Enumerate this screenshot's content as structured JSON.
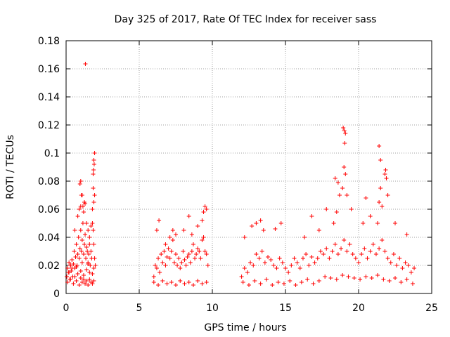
{
  "chart_data": {
    "type": "scatter",
    "title": "Day 325 of 2017, Rate Of TEC Index for receiver sass",
    "xlabel": "GPS time / hours",
    "ylabel": "ROTI / TECUs",
    "xlim": [
      0,
      25
    ],
    "ylim": [
      0,
      0.18
    ],
    "xticks": [
      "0",
      "5",
      "10",
      "15",
      "20",
      "25"
    ],
    "yticks": [
      "0",
      "0.02",
      "0.04",
      "0.06",
      "0.08",
      "0.1",
      "0.12",
      "0.14",
      "0.16",
      "0.18"
    ],
    "grid": true,
    "marker": "+",
    "color": "#ff0000",
    "series": [
      {
        "x": [
          0.05,
          0.1,
          0.15,
          0.2,
          0.25,
          0.3,
          0.35,
          0.4,
          0.45,
          0.5,
          0.55,
          0.6,
          0.65,
          0.7,
          0.75,
          0.8,
          0.85,
          0.9,
          0.95,
          1.0,
          1.05,
          1.1,
          1.15,
          1.2,
          1.25,
          1.3,
          1.35,
          1.4,
          1.45,
          1.5,
          1.55,
          1.6,
          1.65,
          1.7,
          1.75,
          1.8,
          1.85,
          1.9,
          1.95,
          2.0,
          0.1,
          0.3,
          0.5,
          0.7,
          0.9,
          1.0,
          1.1,
          1.2,
          1.3,
          1.4,
          1.5,
          1.6,
          1.7,
          1.8,
          1.9,
          0.6,
          0.8,
          0.9,
          1.0,
          1.1,
          1.2,
          1.25,
          1.4,
          1.5,
          1.6,
          1.7,
          1.8,
          1.85,
          1.9,
          1.95,
          0.95,
          1.0,
          1.05,
          1.15,
          1.3,
          1.85,
          1.9,
          1.95,
          1.88,
          1.92,
          1.32,
          0.2,
          0.4,
          0.6,
          0.8,
          1.0,
          1.2,
          1.4,
          1.6,
          1.8,
          0.3,
          0.7,
          1.1,
          1.5,
          1.9
        ],
        "y": [
          0.012,
          0.018,
          0.015,
          0.022,
          0.01,
          0.02,
          0.016,
          0.024,
          0.012,
          0.021,
          0.03,
          0.018,
          0.026,
          0.035,
          0.02,
          0.028,
          0.04,
          0.025,
          0.032,
          0.045,
          0.03,
          0.038,
          0.05,
          0.028,
          0.035,
          0.042,
          0.025,
          0.033,
          0.03,
          0.022,
          0.028,
          0.035,
          0.02,
          0.03,
          0.025,
          0.05,
          0.045,
          0.035,
          0.025,
          0.02,
          0.008,
          0.01,
          0.007,
          0.009,
          0.006,
          0.011,
          0.008,
          0.01,
          0.007,
          0.009,
          0.006,
          0.01,
          0.008,
          0.007,
          0.009,
          0.045,
          0.055,
          0.06,
          0.062,
          0.07,
          0.058,
          0.065,
          0.05,
          0.045,
          0.04,
          0.048,
          0.06,
          0.075,
          0.065,
          0.07,
          0.078,
          0.08,
          0.07,
          0.062,
          0.064,
          0.085,
          0.095,
          0.1,
          0.088,
          0.092,
          0.1635,
          0.015,
          0.018,
          0.012,
          0.014,
          0.016,
          0.013,
          0.017,
          0.015,
          0.014,
          0.02,
          0.019,
          0.022,
          0.021,
          0.018
        ]
      },
      {
        "x": [
          6.0,
          6.1,
          6.2,
          6.3,
          6.4,
          6.5,
          6.6,
          6.7,
          6.8,
          6.9,
          7.0,
          7.1,
          7.2,
          7.3,
          7.4,
          7.5,
          7.6,
          7.7,
          7.8,
          7.9,
          8.0,
          8.1,
          8.2,
          8.3,
          8.4,
          8.5,
          8.6,
          8.7,
          8.8,
          8.9,
          9.0,
          9.1,
          9.2,
          9.3,
          9.4,
          9.5,
          9.6,
          9.7,
          6.0,
          6.3,
          6.6,
          6.9,
          7.2,
          7.5,
          7.8,
          8.1,
          8.4,
          8.7,
          9.0,
          9.3,
          9.6,
          6.2,
          6.35,
          6.8,
          7.1,
          7.3,
          7.5,
          8.05,
          8.4,
          8.6,
          9.0,
          9.3,
          9.4,
          9.5,
          9.6
        ],
        "y": [
          0.012,
          0.02,
          0.018,
          0.025,
          0.015,
          0.028,
          0.022,
          0.03,
          0.02,
          0.026,
          0.032,
          0.025,
          0.03,
          0.038,
          0.022,
          0.028,
          0.02,
          0.025,
          0.018,
          0.022,
          0.03,
          0.024,
          0.02,
          0.026,
          0.028,
          0.022,
          0.03,
          0.035,
          0.025,
          0.028,
          0.032,
          0.03,
          0.025,
          0.038,
          0.04,
          0.03,
          0.028,
          0.02,
          0.008,
          0.006,
          0.009,
          0.007,
          0.008,
          0.006,
          0.009,
          0.007,
          0.008,
          0.006,
          0.009,
          0.007,
          0.008,
          0.045,
          0.052,
          0.035,
          0.04,
          0.045,
          0.042,
          0.045,
          0.055,
          0.042,
          0.048,
          0.052,
          0.058,
          0.062,
          0.06
        ]
      },
      {
        "x": [
          12.0,
          12.2,
          12.4,
          12.6,
          12.8,
          13.0,
          13.2,
          13.4,
          13.6,
          13.8,
          14.0,
          14.2,
          14.4,
          14.6,
          14.8,
          15.0,
          15.2,
          15.4,
          15.6,
          15.8,
          16.0,
          16.2,
          16.4,
          16.6,
          16.8,
          17.0,
          17.2,
          17.4,
          17.6,
          17.8,
          18.0,
          18.2,
          18.4,
          18.6,
          18.8,
          19.0,
          19.2,
          19.4,
          19.6,
          19.8,
          20.0,
          20.2,
          20.4,
          20.6,
          20.8,
          21.0,
          21.2,
          21.4,
          21.6,
          21.8,
          22.0,
          22.2,
          22.4,
          22.6,
          22.8,
          23.0,
          23.2,
          23.4,
          23.6,
          23.8,
          12.1,
          12.5,
          12.9,
          13.3,
          13.7,
          14.1,
          14.5,
          14.9,
          15.3,
          15.7,
          16.1,
          16.5,
          16.9,
          17.3,
          17.7,
          18.1,
          18.5,
          18.9,
          19.3,
          19.7,
          20.1,
          20.5,
          20.9,
          21.3,
          21.7,
          22.1,
          22.5,
          22.9,
          23.3,
          23.7,
          12.2,
          12.7,
          13.0,
          13.3,
          13.5,
          14.3,
          14.7,
          16.3,
          16.8,
          17.3,
          17.8,
          18.3,
          18.5,
          18.7,
          18.9,
          19.0,
          19.1,
          19.2,
          19.5,
          20.3,
          20.5,
          20.8,
          21.3,
          21.4,
          21.5,
          21.6,
          21.8,
          22.0,
          22.5,
          23.3,
          18.95,
          19.02,
          19.05,
          19.1,
          21.4,
          21.5,
          21.85,
          21.9,
          18.4,
          18.6
        ],
        "y": [
          0.012,
          0.018,
          0.015,
          0.022,
          0.02,
          0.028,
          0.025,
          0.03,
          0.022,
          0.026,
          0.024,
          0.02,
          0.018,
          0.025,
          0.022,
          0.018,
          0.015,
          0.02,
          0.025,
          0.022,
          0.018,
          0.025,
          0.028,
          0.02,
          0.026,
          0.022,
          0.025,
          0.03,
          0.028,
          0.032,
          0.025,
          0.03,
          0.035,
          0.028,
          0.032,
          0.038,
          0.03,
          0.035,
          0.028,
          0.025,
          0.022,
          0.028,
          0.032,
          0.025,
          0.03,
          0.035,
          0.028,
          0.032,
          0.038,
          0.03,
          0.025,
          0.022,
          0.028,
          0.02,
          0.025,
          0.018,
          0.022,
          0.02,
          0.015,
          0.018,
          0.008,
          0.006,
          0.009,
          0.007,
          0.01,
          0.006,
          0.008,
          0.007,
          0.009,
          0.006,
          0.008,
          0.01,
          0.007,
          0.009,
          0.012,
          0.011,
          0.01,
          0.013,
          0.012,
          0.011,
          0.01,
          0.012,
          0.011,
          0.013,
          0.01,
          0.009,
          0.011,
          0.008,
          0.01,
          0.007,
          0.04,
          0.048,
          0.05,
          0.052,
          0.045,
          0.046,
          0.05,
          0.04,
          0.055,
          0.045,
          0.06,
          0.05,
          0.058,
          0.07,
          0.075,
          0.09,
          0.085,
          0.07,
          0.06,
          0.05,
          0.068,
          0.055,
          0.05,
          0.065,
          0.075,
          0.062,
          0.085,
          0.07,
          0.05,
          0.042,
          0.118,
          0.116,
          0.107,
          0.114,
          0.105,
          0.095,
          0.088,
          0.082,
          0.082,
          0.079
        ]
      }
    ]
  }
}
